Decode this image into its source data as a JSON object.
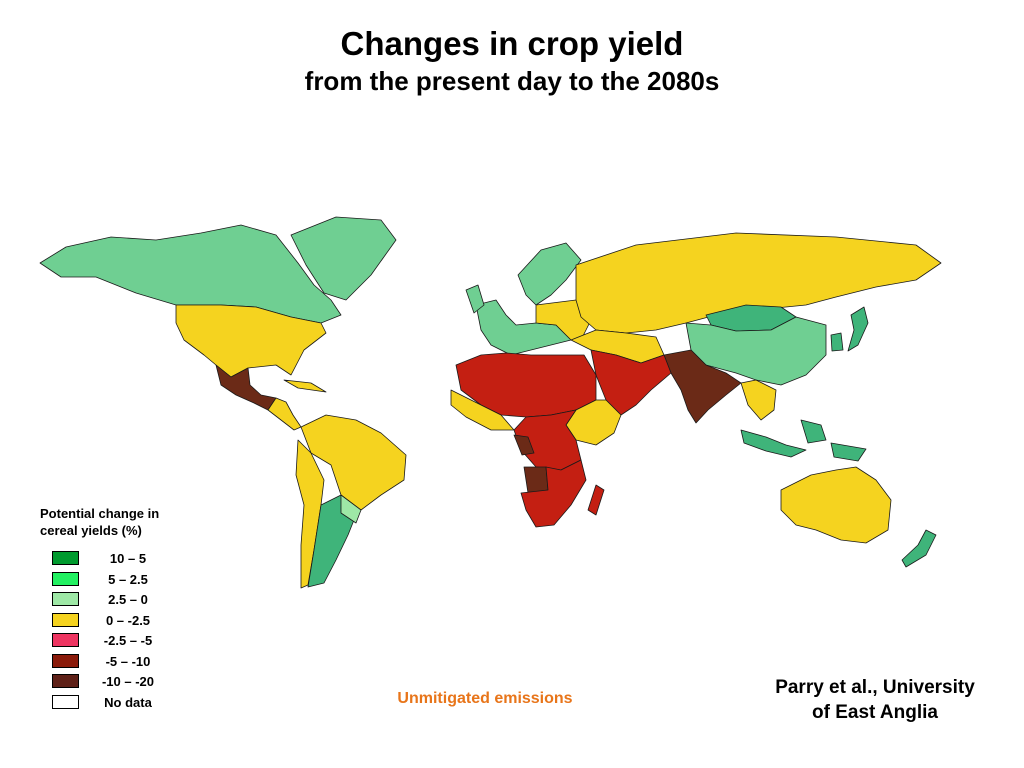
{
  "title": {
    "line1": "Changes in crop yield",
    "line2": "from the present day to the 2080s"
  },
  "legend": {
    "title_line1": "Potential change in",
    "title_line2": "cereal yields (%)",
    "items": [
      {
        "label": "10 – 5",
        "color": "#009a2e"
      },
      {
        "label": "5 – 2.5",
        "color": "#22f061"
      },
      {
        "label": "2.5 – 0",
        "color": "#9ee8a6"
      },
      {
        "label": "0 – -2.5",
        "color": "#f5d31f"
      },
      {
        "label": "-2.5 – -5",
        "color": "#ee3461"
      },
      {
        "label": "-5 – -10",
        "color": "#8a1a0a"
      },
      {
        "label": "-10 – -20",
        "color": "#5e2017"
      },
      {
        "label": "No data",
        "color": "#ffffff"
      }
    ]
  },
  "scenario_label": "Unmitigated emissions",
  "scenario_color": "#e8751a",
  "credit": {
    "line1": "Parry et al., University",
    "line2": "of East Anglia"
  },
  "map_colors": {
    "gain_small": "#6fcf92",
    "gain_mid": "#3fb47a",
    "loss_small": "#f5d31f",
    "loss_large": "#c41f12",
    "loss_severe": "#6b2a17",
    "border": "#1a1a1a"
  }
}
